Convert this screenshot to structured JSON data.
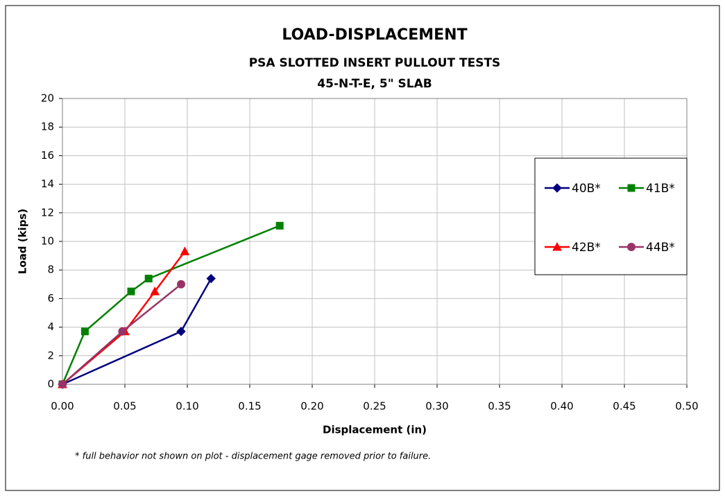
{
  "chart_data": {
    "type": "line",
    "title": "LOAD-DISPLACEMENT",
    "subtitle": [
      "PSA SLOTTED INSERT PULLOUT TESTS",
      "45-N-T-E, 5\" SLAB"
    ],
    "x_label": "Displacement (in)",
    "y_label": "Load (kips)",
    "annotation": "* full behavior not shown on plot - displacement gage removed prior to failure.",
    "xlim": [
      0,
      0.5
    ],
    "xticks": [
      {
        "value": 0,
        "label": "0.00"
      },
      {
        "value": 0.05,
        "label": "0.05"
      },
      {
        "value": 0.1,
        "label": "0.10"
      },
      {
        "value": 0.15,
        "label": "0.15"
      },
      {
        "value": 0.2,
        "label": "0.20"
      },
      {
        "value": 0.25,
        "label": "0.25"
      },
      {
        "value": 0.3,
        "label": "0.30"
      },
      {
        "value": 0.35,
        "label": "0.35"
      },
      {
        "value": 0.4,
        "label": "0.40"
      },
      {
        "value": 0.45,
        "label": "0.45"
      },
      {
        "value": 0.5,
        "label": "0.50"
      }
    ],
    "ylim": [
      0,
      20
    ],
    "yticks": [
      0,
      2,
      4,
      6,
      8,
      10,
      12,
      14,
      16,
      18,
      20
    ],
    "grid": true,
    "legend": "right",
    "series": [
      {
        "name": "40B*",
        "color": "#000080",
        "marker": "diamond",
        "x": [
          0,
          0.095,
          0.119
        ],
        "values": [
          0,
          3.7,
          7.4
        ]
      },
      {
        "name": "41B*",
        "color": "#008000",
        "marker": "square",
        "x": [
          0,
          0.018,
          0.055,
          0.069,
          0.174
        ],
        "values": [
          0,
          3.7,
          6.5,
          7.4,
          11.1
        ]
      },
      {
        "name": "42B*",
        "color": "#ff0000",
        "marker": "triangle",
        "x": [
          0,
          0.05,
          0.074,
          0.098
        ],
        "values": [
          0,
          3.7,
          6.5,
          9.3
        ]
      },
      {
        "name": "44B*",
        "color": "#993366",
        "marker": "circle",
        "x": [
          0,
          0.048,
          0.095
        ],
        "values": [
          0,
          3.7,
          7.0
        ]
      }
    ]
  }
}
